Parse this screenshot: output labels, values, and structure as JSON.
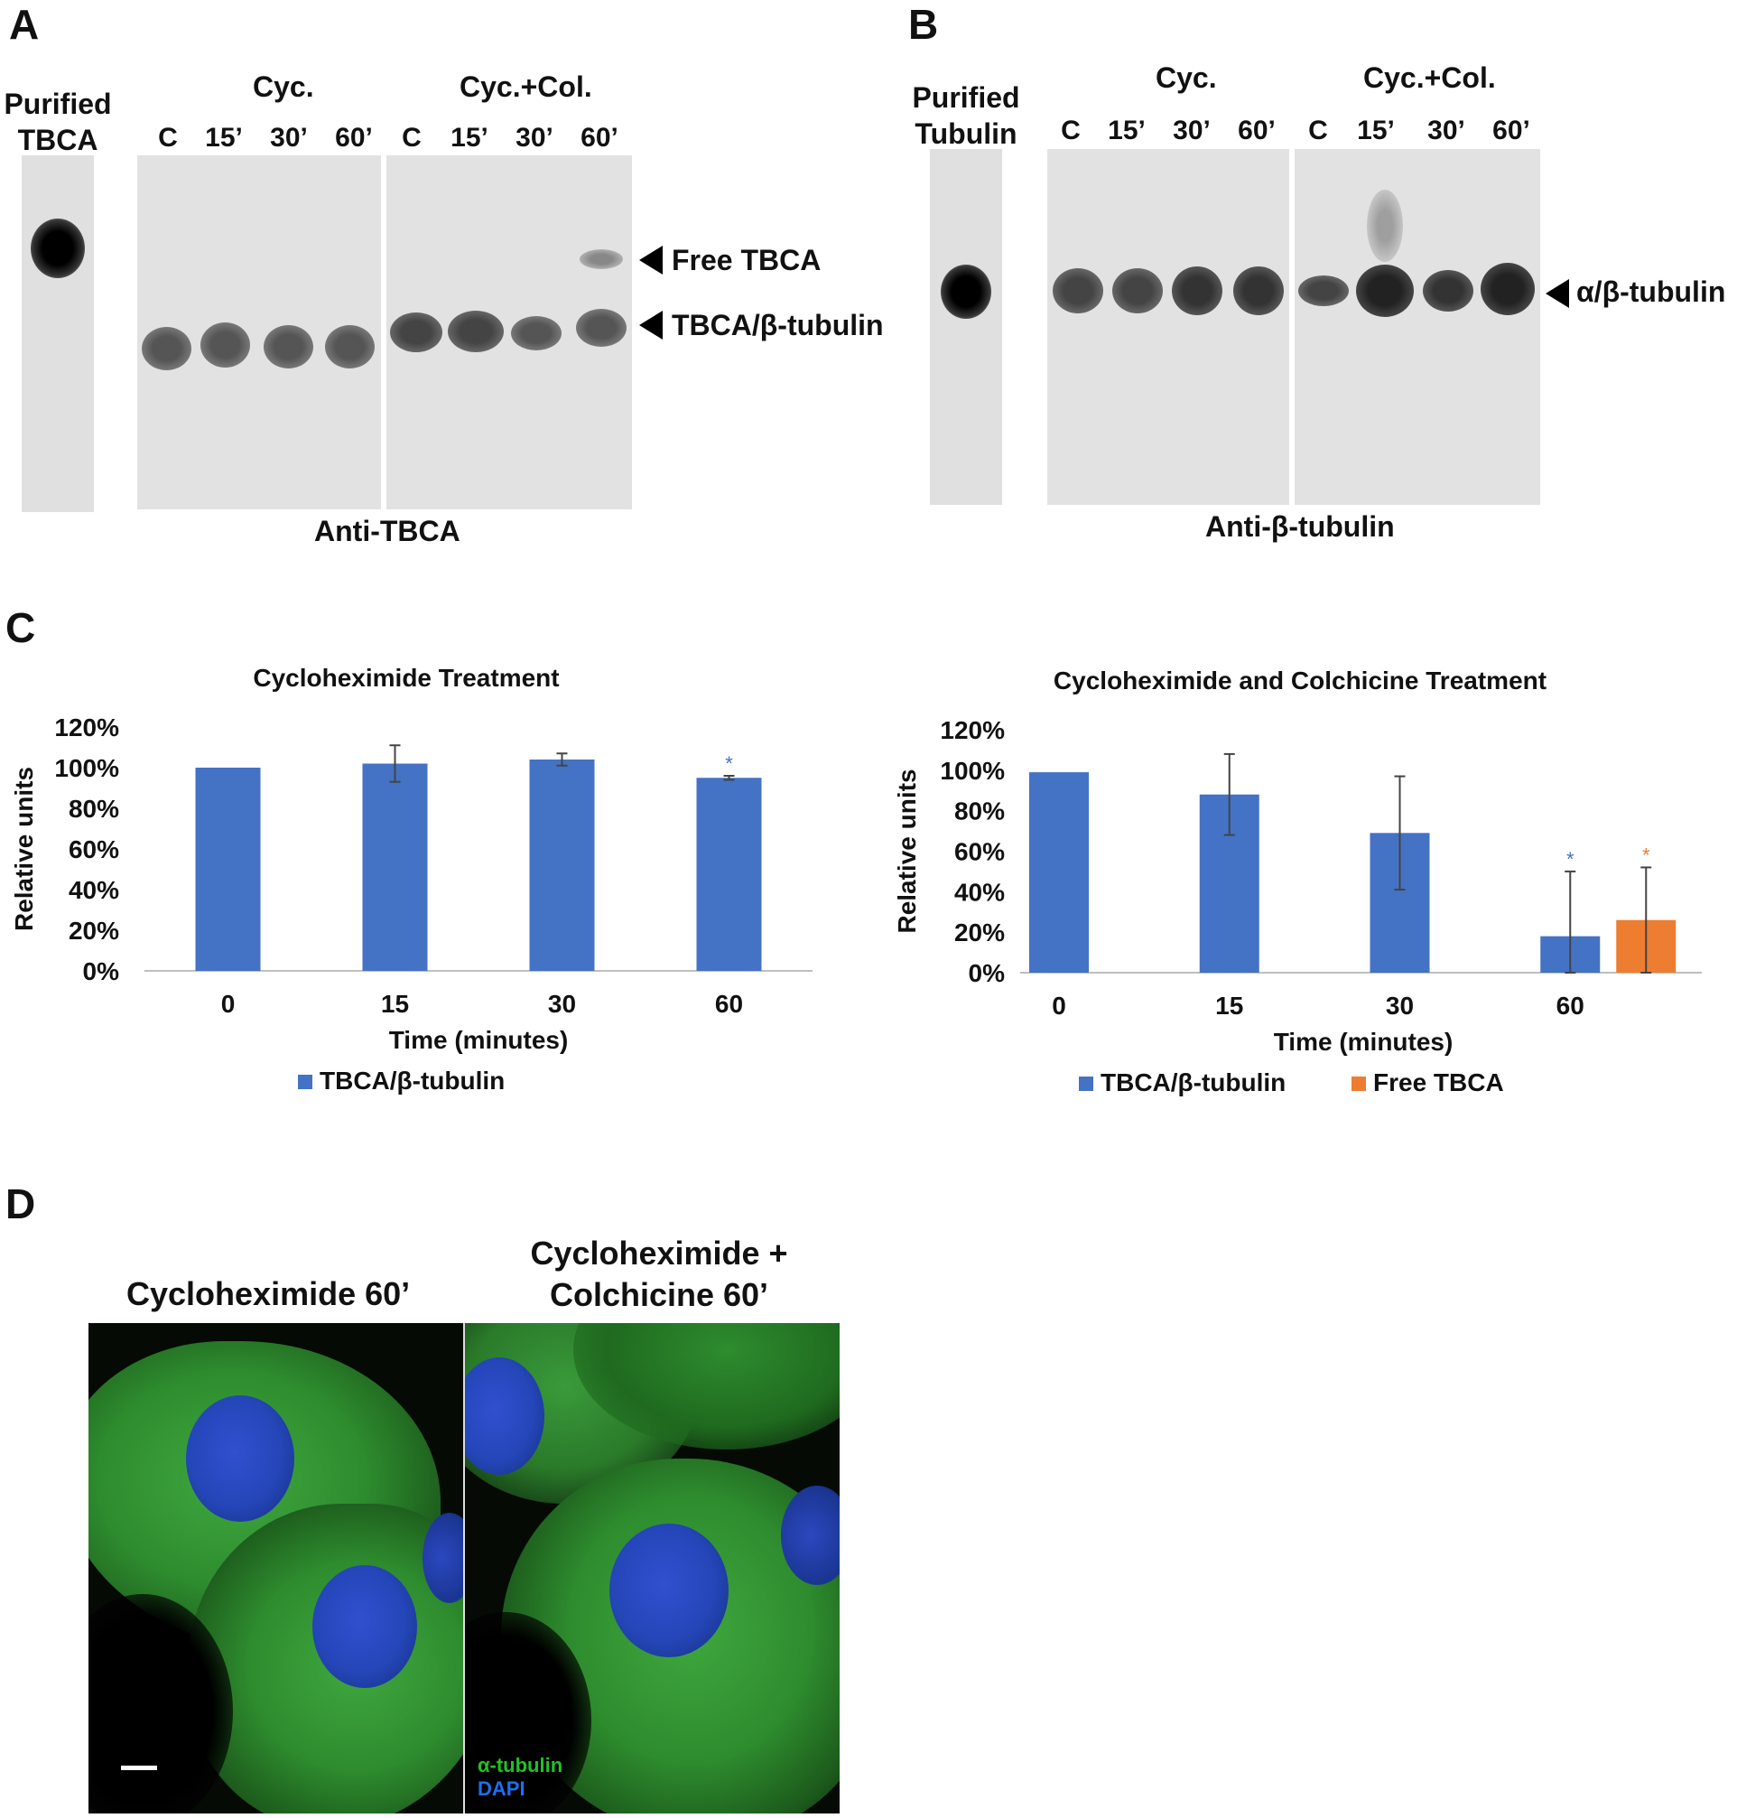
{
  "panel_a": {
    "letter": "A",
    "purified_label_line1": "Purified",
    "purified_label_line2": "TBCA",
    "group1": "Cyc.",
    "group2": "Cyc.+Col.",
    "lanes": [
      "C",
      "15’",
      "30’",
      "60’",
      "C",
      "15’",
      "30’",
      "60’"
    ],
    "arrow_free": "Free TBCA",
    "arrow_complex": "TBCA/β-tubulin",
    "antibody": "Anti-TBCA"
  },
  "panel_b": {
    "letter": "B",
    "purified_label_line1": "Purified",
    "purified_label_line2": "Tubulin",
    "group1": "Cyc.",
    "group2": "Cyc.+Col.",
    "lanes": [
      "C",
      "15’",
      "30’",
      "60’",
      "C",
      "15’",
      "30’",
      "60’"
    ],
    "arrow_label": "α/β-tubulin",
    "antibody": "Anti-β-tubulin"
  },
  "panel_c": {
    "letter": "C"
  },
  "chart_data": [
    {
      "type": "bar",
      "title": "Cycloheximide Treatment",
      "categories": [
        "0",
        "15",
        "30",
        "60"
      ],
      "xlabel": "Time (minutes)",
      "ylabel": "Relative units",
      "ylim": [
        0,
        120
      ],
      "yticks": [
        "0%",
        "20%",
        "40%",
        "60%",
        "80%",
        "100%",
        "120%"
      ],
      "series": [
        {
          "name": "TBCA/β-tubulin",
          "color": "#4472c4",
          "values": [
            100,
            102,
            104,
            95
          ],
          "errors": [
            0,
            9,
            3,
            1
          ],
          "significant": [
            false,
            false,
            false,
            true
          ]
        }
      ],
      "significance_marker": "*",
      "legend": "bottom"
    },
    {
      "type": "bar",
      "title": "Cycloheximide and Colchicine Treatment",
      "categories": [
        "0",
        "15",
        "30",
        "60"
      ],
      "xlabel": "Time (minutes)",
      "ylabel": "Relative units",
      "ylim": [
        0,
        120
      ],
      "yticks": [
        "0%",
        "20%",
        "40%",
        "60%",
        "80%",
        "100%",
        "120%"
      ],
      "series": [
        {
          "name": "TBCA/β-tubulin",
          "color": "#4472c4",
          "values": [
            99,
            88,
            69,
            18
          ],
          "errors": [
            0,
            20,
            28,
            32
          ],
          "significant": [
            false,
            false,
            false,
            true
          ]
        },
        {
          "name": "Free TBCA",
          "color": "#ed7d31",
          "values": [
            null,
            null,
            null,
            26
          ],
          "errors": [
            null,
            null,
            null,
            26
          ],
          "significant": [
            false,
            false,
            false,
            true
          ]
        }
      ],
      "significance_marker": "*",
      "legend": "bottom"
    }
  ],
  "panel_d": {
    "letter": "D",
    "left_title": "Cycloheximide 60’",
    "right_title_line1": "Cycloheximide +",
    "right_title_line2": "Colchicine 60’",
    "legend_green": "α-tubulin",
    "legend_blue": "DAPI",
    "green_color": "#22c222",
    "blue_color": "#1e6ff0"
  }
}
